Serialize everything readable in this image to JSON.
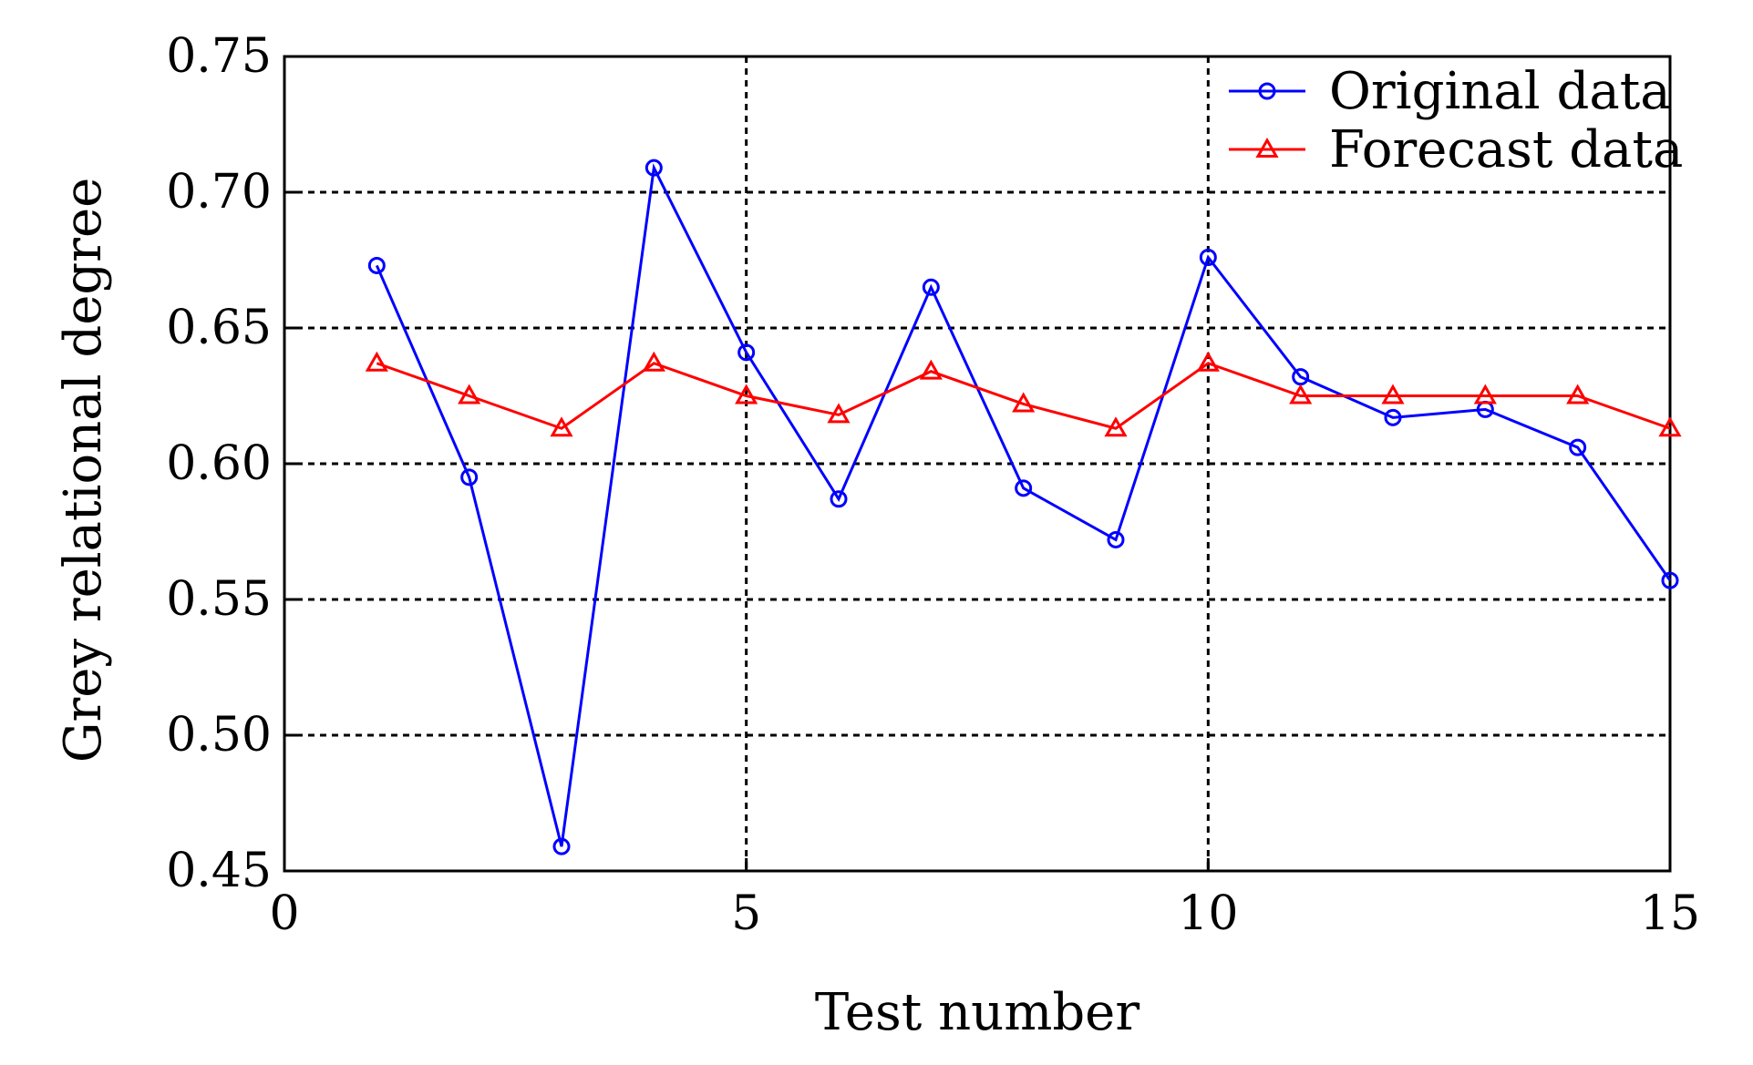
{
  "chart_data": {
    "type": "line",
    "xlabel": "Test number",
    "ylabel": "Grey relational degree",
    "xlim": [
      0,
      15
    ],
    "ylim": [
      0.45,
      0.75
    ],
    "xticks": [
      0,
      5,
      10,
      15
    ],
    "xtick_labels": [
      "0",
      "5",
      "10",
      "15"
    ],
    "yticks": [
      0.45,
      0.5,
      0.55,
      0.6,
      0.65,
      0.7,
      0.75
    ],
    "ytick_labels": [
      "0.45",
      "0.50",
      "0.55",
      "0.60",
      "0.65",
      "0.70",
      "0.75"
    ],
    "grid": true,
    "legend_position": "top-right",
    "x": [
      1,
      2,
      3,
      4,
      5,
      6,
      7,
      8,
      9,
      10,
      11,
      12,
      13,
      14,
      15
    ],
    "series": [
      {
        "name": "Original data",
        "color": "#0000ff",
        "marker": "circle",
        "values": [
          0.673,
          0.595,
          0.459,
          0.709,
          0.641,
          0.587,
          0.665,
          0.591,
          0.572,
          0.676,
          0.632,
          0.617,
          0.62,
          0.606,
          0.557
        ]
      },
      {
        "name": "Forecast data",
        "color": "#ff0000",
        "marker": "triangle",
        "values": [
          0.637,
          0.625,
          0.613,
          0.637,
          0.625,
          0.618,
          0.634,
          0.622,
          0.613,
          0.637,
          0.625,
          0.625,
          0.625,
          0.625,
          0.613
        ]
      }
    ]
  }
}
